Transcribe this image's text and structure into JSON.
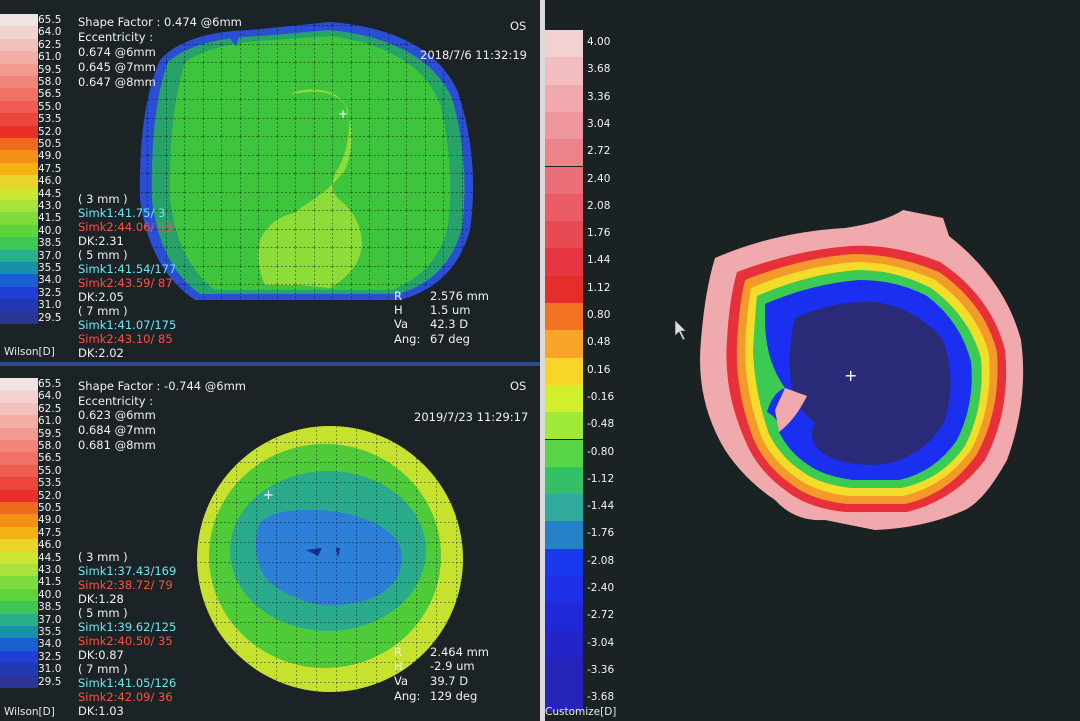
{
  "colors": {
    "wilson": [
      "#f0e4e2",
      "#f1d4d0",
      "#f1c2bc",
      "#f3aea6",
      "#f29a90",
      "#f2857a",
      "#f07266",
      "#ef5c52",
      "#ec453b",
      "#e92f27",
      "#f06a1d",
      "#f39016",
      "#f5b212",
      "#e9d52a",
      "#cfe534",
      "#a8e23b",
      "#7fdb3b",
      "#5dd43c",
      "#3fc754",
      "#28b08a",
      "#1890a8",
      "#1a5fd0",
      "#1f3ed6",
      "#2338b3",
      "#2b3594",
      "#344178",
      "#3b4c6e"
    ],
    "customize": [
      "#f3d0d2",
      "#f2bcc0",
      "#f1a9ae",
      "#ef969c",
      "#ed838a",
      "#eb6f78",
      "#e95c66",
      "#e84a54",
      "#e53642",
      "#e52e2b",
      "#f27324",
      "#f9a52b",
      "#f8d528",
      "#d2ef2d",
      "#9fe93a",
      "#58d547",
      "#33c069",
      "#30aa9c",
      "#2680c8",
      "#1a38f0",
      "#1e2fe8",
      "#2128d8",
      "#2425c9",
      "#2624b8"
    ]
  },
  "top_panel": {
    "scale_values": [
      "65.5",
      "64.0",
      "62.5",
      "61.0",
      "59.5",
      "58.0",
      "56.5",
      "55.0",
      "53.5",
      "52.0",
      "50.5",
      "49.0",
      "47.5",
      "46.0",
      "44.5",
      "43.0",
      "41.5",
      "40.0",
      "38.5",
      "37.0",
      "35.5",
      "34.0",
      "32.5",
      "31.0",
      "29.5"
    ],
    "scale_caption": "Wilson[D]",
    "shape_factor": "Shape Factor : 0.474 @6mm",
    "eccentricity_label": "Eccentricity :",
    "ecc_6mm": "0.674 @6mm",
    "ecc_7mm": "0.645 @7mm",
    "ecc_8mm": "0.647 @8mm",
    "eye": "OS",
    "datetime": "2018/7/6 11:32:19",
    "zone3_label": "( 3 mm )",
    "zone3_simk1": "Simk1:41.75/  3",
    "zone3_simk2": "Simk2:44.06/ 93",
    "zone3_dk": "DK:2.31",
    "zone5_label": "( 5 mm )",
    "zone5_simk1": "Simk1:41.54/177",
    "zone5_simk2": "Simk2:43.59/ 87",
    "zone5_dk": "DK:2.05",
    "zone7_label": "( 7 mm )",
    "zone7_simk1": "Simk1:41.07/175",
    "zone7_simk2": "Simk2:43.10/ 85",
    "zone7_dk": "DK:2.02",
    "r_label": "R",
    "r_value": "2.576 mm",
    "h_label": "H",
    "h_value": "1.5 um",
    "va_label": "Va",
    "va_value": "42.3 D",
    "ang_label": "Ang:",
    "ang_value": "67 deg"
  },
  "bottom_panel": {
    "scale_values": [
      "65.5",
      "64.0",
      "62.5",
      "61.0",
      "59.5",
      "58.0",
      "56.5",
      "55.0",
      "53.5",
      "52.0",
      "50.5",
      "49.0",
      "47.5",
      "46.0",
      "44.5",
      "43.0",
      "41.5",
      "40.0",
      "38.5",
      "37.0",
      "35.5",
      "34.0",
      "32.5",
      "31.0",
      "29.5"
    ],
    "scale_caption": "Wilson[D]",
    "shape_factor": "Shape Factor : -0.744 @6mm",
    "eccentricity_label": "Eccentricity :",
    "ecc_6mm": "0.623 @6mm",
    "ecc_7mm": "0.684 @7mm",
    "ecc_8mm": "0.681 @8mm",
    "eye": "OS",
    "datetime": "2019/7/23 11:29:17",
    "zone3_label": "( 3 mm )",
    "zone3_simk1": "Simk1:37.43/169",
    "zone3_simk2": "Simk2:38.72/ 79",
    "zone3_dk": "DK:1.28",
    "zone5_label": "( 5 mm )",
    "zone5_simk1": "Simk1:39.62/125",
    "zone5_simk2": "Simk2:40.50/ 35",
    "zone5_dk": "DK:0.87",
    "zone7_label": "( 7 mm )",
    "zone7_simk1": "Simk1:41.05/126",
    "zone7_simk2": "Simk2:42.09/ 36",
    "zone7_dk": "DK:1.03",
    "r_label": "R",
    "r_value": "2.464 mm",
    "h_label": "H",
    "h_value": "-2.9 um",
    "va_label": "Va",
    "va_value": "39.7 D",
    "ang_label": "Ang:",
    "ang_value": "129 deg"
  },
  "right_panel": {
    "scale_values": [
      "4.00",
      "3.68",
      "3.36",
      "3.04",
      "2.72",
      "2.40",
      "2.08",
      "1.76",
      "1.44",
      "1.12",
      "0.80",
      "0.48",
      "0.16",
      "-0.16",
      "-0.48",
      "-0.80",
      "-1.12",
      "-1.44",
      "-1.76",
      "-2.08",
      "-2.40",
      "-2.72",
      "-3.04",
      "-3.36",
      "-3.68"
    ],
    "scale_caption": "Customize[D]"
  }
}
